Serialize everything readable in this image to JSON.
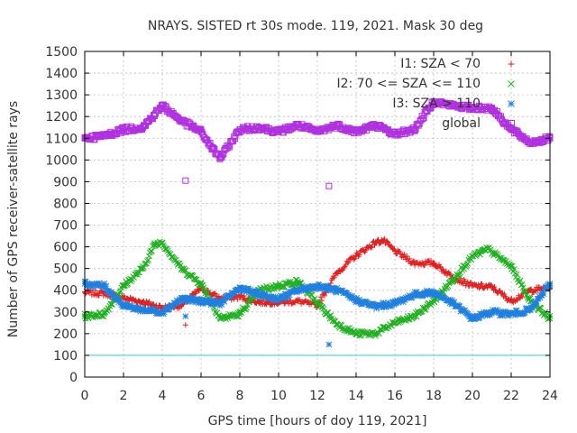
{
  "chart_data": {
    "type": "scatter",
    "title": "NRAYS. SISTED rt 30s mode. 119, 2021. Mask 30 deg",
    "xlabel": "GPS time [hours of doy 119, 2021]",
    "ylabel": "Number of GPS receiver-satellite rays",
    "xlim": [
      0,
      24
    ],
    "ylim": [
      0,
      1500
    ],
    "xticks": [
      "0",
      "2",
      "4",
      "6",
      "8",
      "10",
      "12",
      "14",
      "16",
      "18",
      "20",
      "22",
      "24"
    ],
    "yticks": [
      "0",
      "100",
      "200",
      "300",
      "400",
      "500",
      "600",
      "700",
      "800",
      "900",
      "1000",
      "1100",
      "1200",
      "1300",
      "1400",
      "1500"
    ],
    "grid": true,
    "legend_position": "top-right",
    "reference_line": {
      "y": 100,
      "color": "#33cccc"
    },
    "series": [
      {
        "name": "I1: SZA < 70",
        "marker": "plus",
        "color": "#e02020",
        "x": [
          0,
          1,
          2,
          3,
          4,
          5,
          6,
          7,
          8,
          9,
          10,
          11,
          12,
          13,
          14,
          15,
          15.4,
          16,
          17,
          18,
          19,
          20,
          21,
          22,
          23,
          24
        ],
        "y": [
          390,
          385,
          365,
          345,
          320,
          330,
          410,
          360,
          370,
          345,
          345,
          350,
          330,
          480,
          560,
          620,
          630,
          580,
          525,
          525,
          460,
          420,
          415,
          350,
          400,
          410
        ]
      },
      {
        "name": "I2: 70 <= SZA <= 110",
        "marker": "cross",
        "color": "#20b020",
        "x": [
          0,
          1,
          2,
          3,
          3.6,
          4,
          5,
          6,
          7,
          8,
          9,
          10,
          11,
          12,
          13,
          14,
          15,
          16,
          17,
          18,
          19,
          20,
          20.8,
          22,
          23,
          24
        ],
        "y": [
          280,
          290,
          420,
          500,
          610,
          620,
          500,
          430,
          270,
          290,
          400,
          420,
          440,
          340,
          245,
          200,
          200,
          250,
          280,
          350,
          450,
          555,
          590,
          510,
          350,
          270
        ]
      },
      {
        "name": "I3: SZA > 110",
        "marker": "star",
        "color": "#2080e0",
        "x": [
          0,
          1,
          2,
          3,
          4,
          5,
          6,
          7,
          8,
          9,
          10,
          11,
          12,
          13,
          14,
          15,
          16,
          17,
          18,
          19,
          20,
          21,
          22,
          23,
          24
        ],
        "y": [
          430,
          420,
          330,
          310,
          300,
          360,
          350,
          340,
          410,
          380,
          360,
          400,
          420,
          400,
          355,
          325,
          340,
          380,
          390,
          340,
          270,
          300,
          290,
          310,
          430
        ]
      },
      {
        "name": "global",
        "marker": "square",
        "color": "#b030e0",
        "x": [
          0,
          1,
          2,
          3,
          4,
          5,
          6,
          6.6,
          7,
          8,
          9,
          10,
          11,
          12,
          13,
          14,
          15,
          16,
          17,
          18,
          19,
          20,
          21,
          22,
          23,
          24
        ],
        "y": [
          1100,
          1110,
          1140,
          1150,
          1250,
          1180,
          1130,
          1050,
          1010,
          1140,
          1150,
          1130,
          1160,
          1130,
          1160,
          1130,
          1160,
          1120,
          1140,
          1270,
          1250,
          1240,
          1240,
          1140,
          1080,
          1100
        ]
      }
    ],
    "outliers": [
      {
        "series": "global",
        "x": 5.2,
        "y": 905
      },
      {
        "series": "global",
        "x": 12.6,
        "y": 880
      },
      {
        "series": "I3: SZA > 110",
        "x": 12.6,
        "y": 150
      },
      {
        "series": "I3: SZA > 110",
        "x": 5.2,
        "y": 280
      },
      {
        "series": "I1: SZA < 70",
        "x": 5.2,
        "y": 240
      }
    ]
  }
}
